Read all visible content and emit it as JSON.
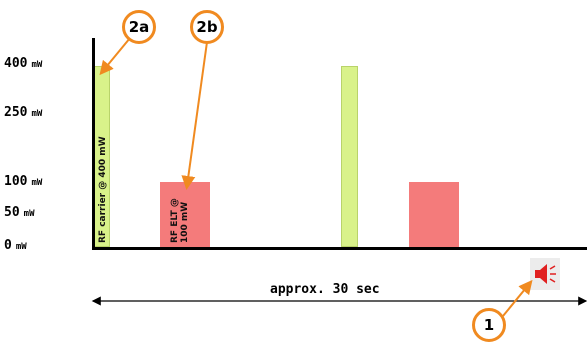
{
  "y_ticks": [
    {
      "value": "400",
      "unit": "mW"
    },
    {
      "value": "250",
      "unit": "mW"
    },
    {
      "value": "100",
      "unit": "mW"
    },
    {
      "value": "50",
      "unit": "mW"
    },
    {
      "value": "0",
      "unit": "mW"
    }
  ],
  "bars": [
    {
      "label": "RF carrier @ 400 mW",
      "power_mw": 400,
      "color": "#d9f28a"
    },
    {
      "label_line1": "RF ELT @",
      "label_line2": "100 mW",
      "power_mw": 100,
      "color": "#f47b7b"
    },
    {
      "power_mw": 400,
      "color": "#d9f28a"
    },
    {
      "power_mw": 100,
      "color": "#f47b7b"
    }
  ],
  "callouts": {
    "c2a": "2a",
    "c2b": "2b",
    "c1": "1"
  },
  "duration_label": "approx. 30 sec",
  "colors": {
    "carrier": "#d9f28a",
    "elt": "#f47b7b",
    "callout_ring": "#f08a20",
    "speaker": "#e02020"
  },
  "icons": {
    "speaker": "speaker-sound-icon"
  }
}
